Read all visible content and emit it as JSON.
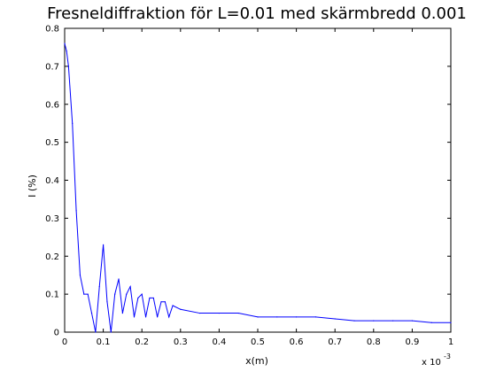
{
  "chart_data": {
    "type": "line",
    "title": "Fresneldiffraktion för L=0.01 med skärmbredd 0.001",
    "xlabel": "x(m)",
    "ylabel": "I (%)",
    "x_multiplier_label": "x 10",
    "x_multiplier_exponent": "-3",
    "xlim": [
      0,
      1
    ],
    "ylim": [
      0,
      0.8
    ],
    "x_ticks": [
      "0",
      "0.1",
      "0.2",
      "0.3",
      "0.4",
      "0.5",
      "0.6",
      "0.7",
      "0.8",
      "0.9",
      "1"
    ],
    "y_ticks": [
      "0",
      "0.1",
      "0.2",
      "0.3",
      "0.4",
      "0.5",
      "0.6",
      "0.7",
      "0.8"
    ],
    "grid": false,
    "series_color": "#0000ff",
    "series": [
      {
        "x": [
          0,
          0.005,
          0.01,
          0.02,
          0.03,
          0.04,
          0.05,
          0.06,
          0.07,
          0.08,
          0.09,
          0.1,
          0.11,
          0.12,
          0.13,
          0.14,
          0.15,
          0.16,
          0.17,
          0.18,
          0.19,
          0.2,
          0.21,
          0.22,
          0.23,
          0.24,
          0.25,
          0.26,
          0.27,
          0.28,
          0.3,
          0.35,
          0.4,
          0.45,
          0.5,
          0.55,
          0.6,
          0.65,
          0.7,
          0.75,
          0.8,
          0.85,
          0.9,
          0.95,
          1.0
        ],
        "values": [
          0.76,
          0.74,
          0.7,
          0.55,
          0.32,
          0.15,
          0.1,
          0.1,
          0.05,
          0.0,
          0.12,
          0.23,
          0.08,
          0.0,
          0.1,
          0.14,
          0.05,
          0.1,
          0.12,
          0.04,
          0.09,
          0.1,
          0.04,
          0.09,
          0.09,
          0.04,
          0.08,
          0.08,
          0.04,
          0.07,
          0.06,
          0.05,
          0.05,
          0.05,
          0.04,
          0.04,
          0.04,
          0.04,
          0.035,
          0.03,
          0.03,
          0.03,
          0.03,
          0.025,
          0.025
        ]
      }
    ]
  }
}
